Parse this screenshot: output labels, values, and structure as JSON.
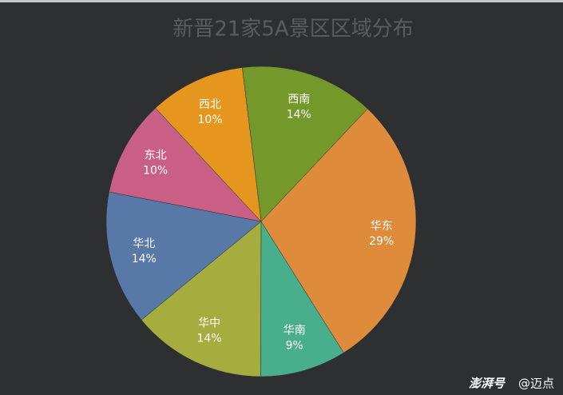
{
  "chart_data": {
    "type": "pie",
    "title": "新晋21家5A景区区域分布",
    "categories": [
      "西南",
      "华东",
      "华南",
      "华中",
      "华北",
      "东北",
      "西北"
    ],
    "values": [
      14,
      29,
      9,
      14,
      14,
      10,
      10
    ],
    "value_labels": [
      "14%",
      "29%",
      "9%",
      "14%",
      "14%",
      "10%",
      "10%"
    ],
    "colors": [
      "#74982a",
      "#de8c3c",
      "#48ae8c",
      "#a5ad3f",
      "#5878a8",
      "#c95f84",
      "#e5961e"
    ],
    "watermark_brand": "澎湃号",
    "watermark_handle": "@迈点"
  }
}
